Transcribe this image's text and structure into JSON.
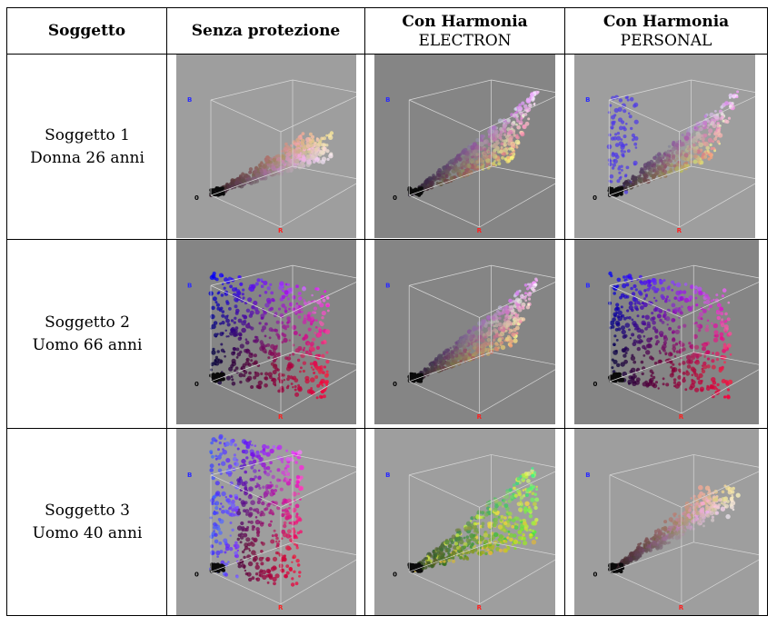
{
  "table": {
    "headers": {
      "subject": "Soggetto",
      "col1": "Senza protezione",
      "col2_line1": "Con Harmonia",
      "col2_line2": "ELECTRON",
      "col3_line1": "Con Harmonia",
      "col3_line2": "PERSONAL"
    },
    "rows": [
      {
        "line1": "Soggetto 1",
        "line2": "Donna 26 anni"
      },
      {
        "line1": "Soggetto 2",
        "line2": "Uomo 66 anni"
      },
      {
        "line1": "Soggetto 3",
        "line2": "Uomo 40 anni"
      }
    ]
  },
  "plot_axes": {
    "b": "B",
    "r": "R",
    "origin": "0"
  },
  "colors": {
    "plot_bg_light": "#9e9e9e",
    "plot_bg_dark": "#858585",
    "axis_b": "#2a2aff",
    "axis_r": "#ff2020"
  }
}
